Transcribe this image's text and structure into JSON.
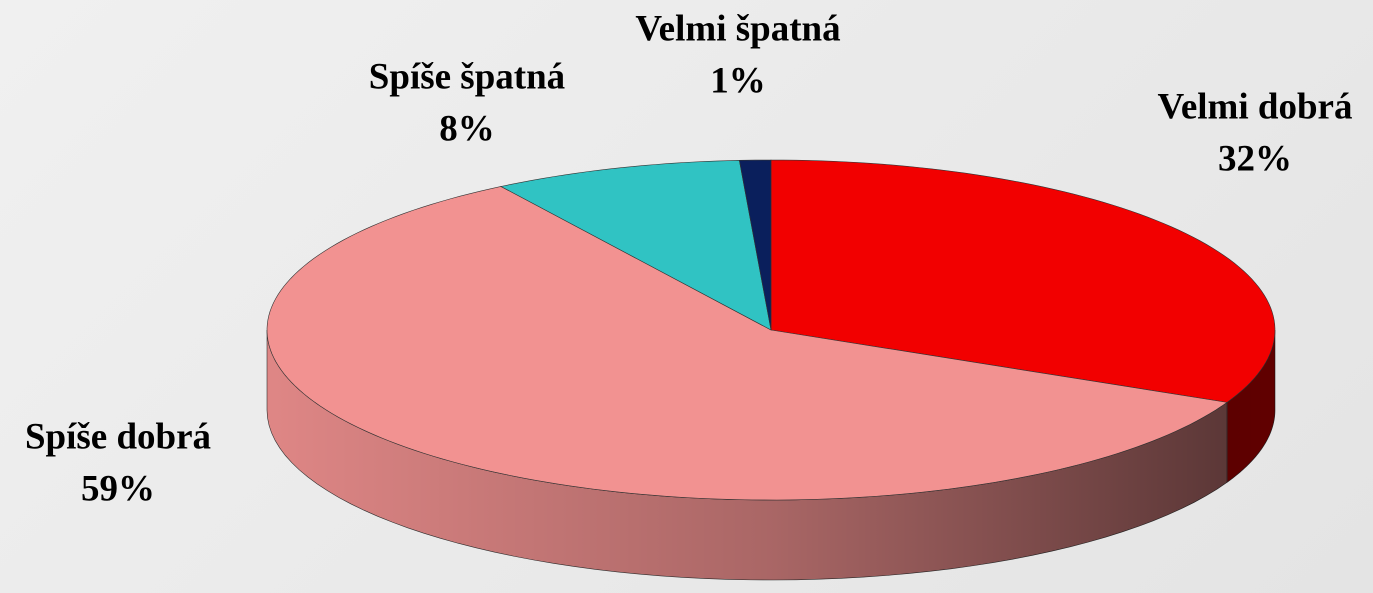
{
  "chart_data": {
    "type": "pie",
    "categories": [
      "Velmi dobrá",
      "Spíše dobrá",
      "Spíše špatná",
      "Velmi špatná"
    ],
    "values": [
      32,
      59,
      8,
      1
    ],
    "value_labels": [
      "32%",
      "59%",
      "8%",
      "1%"
    ],
    "colors": [
      "#f20000",
      "#f29291",
      "#30c3c3",
      "#0a1f5c"
    ]
  }
}
